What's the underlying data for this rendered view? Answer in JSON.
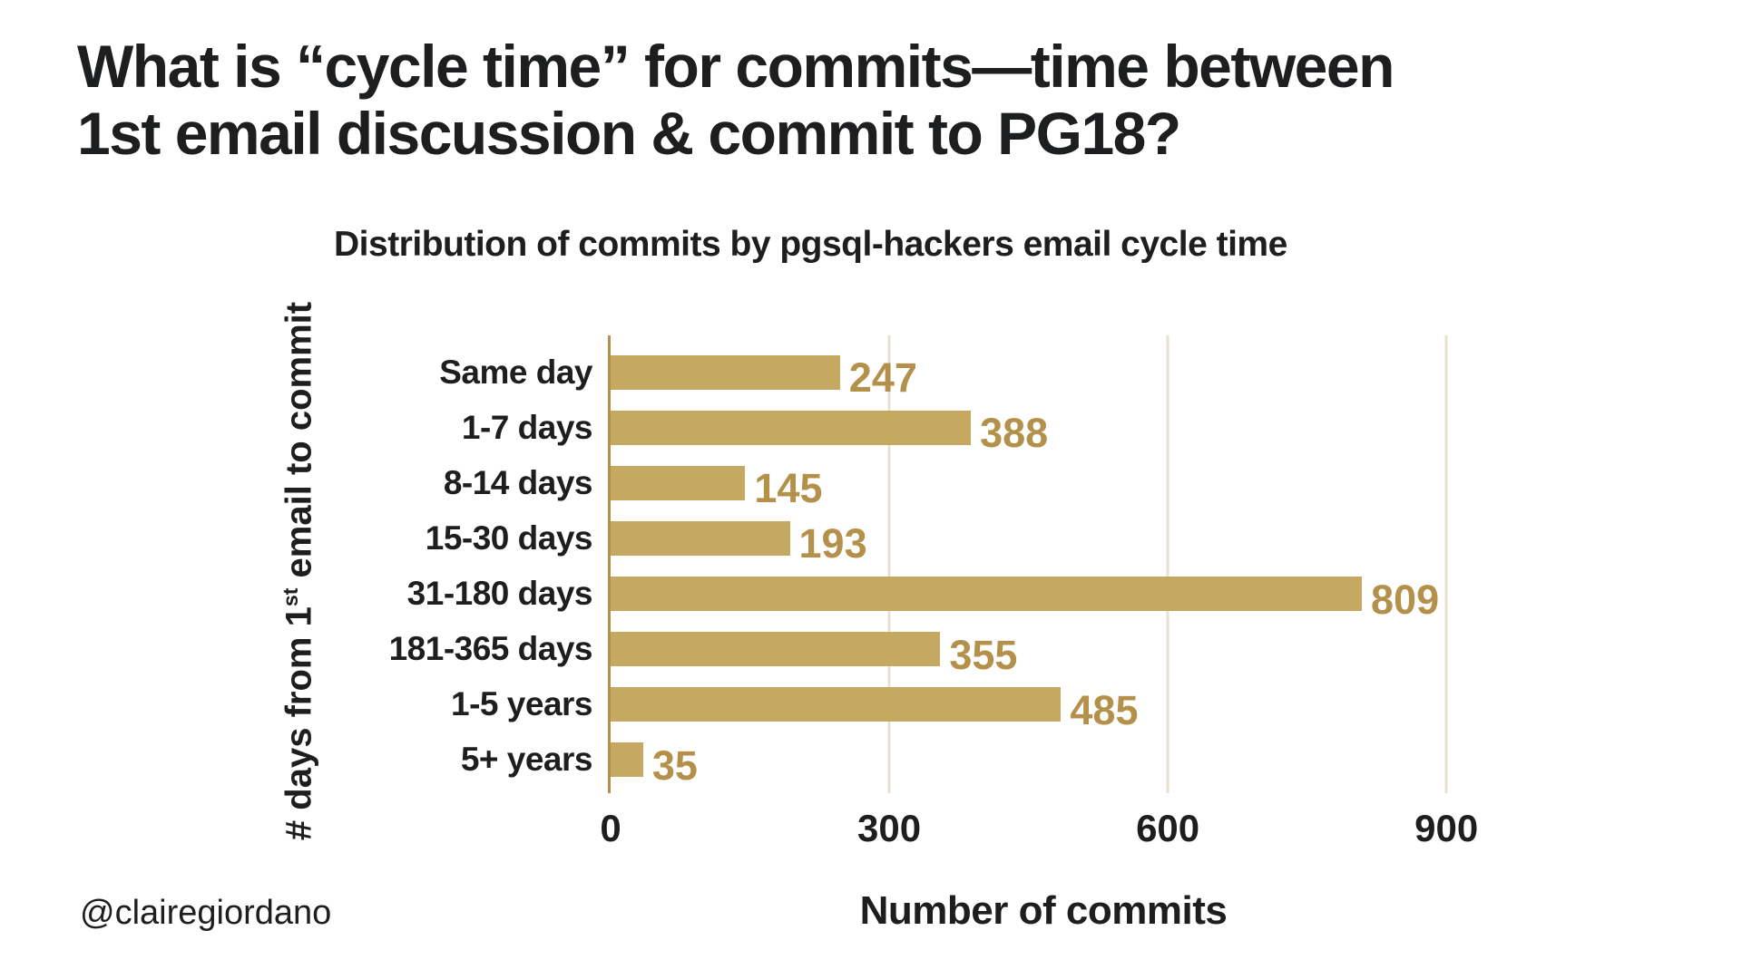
{
  "slide": {
    "title_line1": "What is “cycle time” for commits—time between",
    "title_line2": "1st email discussion & commit to PG18?",
    "attribution": "@clairegiordano"
  },
  "chart_data": {
    "type": "bar",
    "orientation": "horizontal",
    "title": "Distribution of commits by pgsql-hackers email cycle time",
    "categories": [
      "Same day",
      "1-7 days",
      "8-14 days",
      "15-30 days",
      "31-180 days",
      "181-365 days",
      "1-5 years",
      "5+ years"
    ],
    "values": [
      247,
      388,
      145,
      193,
      809,
      355,
      485,
      35
    ],
    "xlabel": "Number of commits",
    "ylabel": "# days from 1st email to commit",
    "ylabel_prefix": "# days from 1",
    "ylabel_sup": "st",
    "ylabel_suffix": " email to commit",
    "xticks": [
      0,
      300,
      600,
      900
    ],
    "xlim": [
      0,
      935
    ],
    "grid": true,
    "legend": false,
    "colors": {
      "bar": "#c5a963",
      "value_label": "#b3914a",
      "axis": "#b3914a",
      "gridline": "#e8e1cd",
      "text": "#1d1e20",
      "background": "#ffffff"
    }
  }
}
